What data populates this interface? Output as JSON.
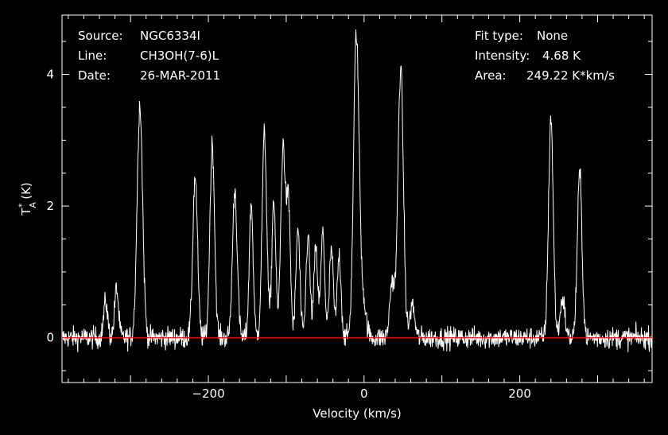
{
  "chart_data": {
    "type": "line",
    "xlabel": "Velocity (km/s)",
    "ylabel": "T*A (K)",
    "xlim": [
      -388,
      370
    ],
    "ylim": [
      -0.68,
      4.9
    ],
    "x_ticks": [
      -200,
      0,
      200
    ],
    "y_ticks": [
      0,
      2,
      4
    ],
    "line_color": "#ffffff",
    "baseline": {
      "value": 0,
      "color": "#ff0000"
    },
    "grid": false,
    "legend": "none",
    "noise_rms_K": 0.12,
    "peaks": [
      {
        "v": -332,
        "h": 0.55,
        "w": 2.5
      },
      {
        "v": -318,
        "h": 0.75,
        "w": 2.5
      },
      {
        "v": -288,
        "h": 3.55,
        "w": 3.5
      },
      {
        "v": -217,
        "h": 2.45,
        "w": 3
      },
      {
        "v": -195,
        "h": 2.95,
        "w": 3
      },
      {
        "v": -166,
        "h": 2.25,
        "w": 3
      },
      {
        "v": -145,
        "h": 2.05,
        "w": 2.5
      },
      {
        "v": -128,
        "h": 3.1,
        "w": 3
      },
      {
        "v": -116,
        "h": 2.1,
        "w": 2.5
      },
      {
        "v": -104,
        "h": 2.9,
        "w": 3
      },
      {
        "v": -97,
        "h": 1.95,
        "w": 2.5
      },
      {
        "v": -85,
        "h": 1.65,
        "w": 2.5
      },
      {
        "v": -72,
        "h": 1.55,
        "w": 2.5
      },
      {
        "v": -62,
        "h": 1.35,
        "w": 2.5
      },
      {
        "v": -53,
        "h": 1.6,
        "w": 2.5
      },
      {
        "v": -42,
        "h": 1.35,
        "w": 2.5
      },
      {
        "v": -32,
        "h": 1.25,
        "w": 2.5
      },
      {
        "v": -10,
        "h": 4.55,
        "w": 3.5
      },
      {
        "v": -2,
        "h": 0.6,
        "w": 4
      },
      {
        "v": 36,
        "h": 0.85,
        "w": 3
      },
      {
        "v": 47,
        "h": 4.1,
        "w": 3.5
      },
      {
        "v": 62,
        "h": 0.5,
        "w": 3
      },
      {
        "v": 240,
        "h": 3.35,
        "w": 3
      },
      {
        "v": 255,
        "h": 0.6,
        "w": 3
      },
      {
        "v": 277,
        "h": 2.5,
        "w": 3
      }
    ]
  },
  "info_left": {
    "source_label": "Source:",
    "source_value": "NGC6334I",
    "line_label": "Line:",
    "line_value": "CH3OH(7-6)L",
    "date_label": "Date:",
    "date_value": "26-MAR-2011"
  },
  "info_right": {
    "fit_label": "Fit type:",
    "fit_value": "None",
    "intensity_label": "Intensity:",
    "intensity_value": "4.68 K",
    "area_label": "Area:",
    "area_value": "249.22 K*km/s"
  }
}
